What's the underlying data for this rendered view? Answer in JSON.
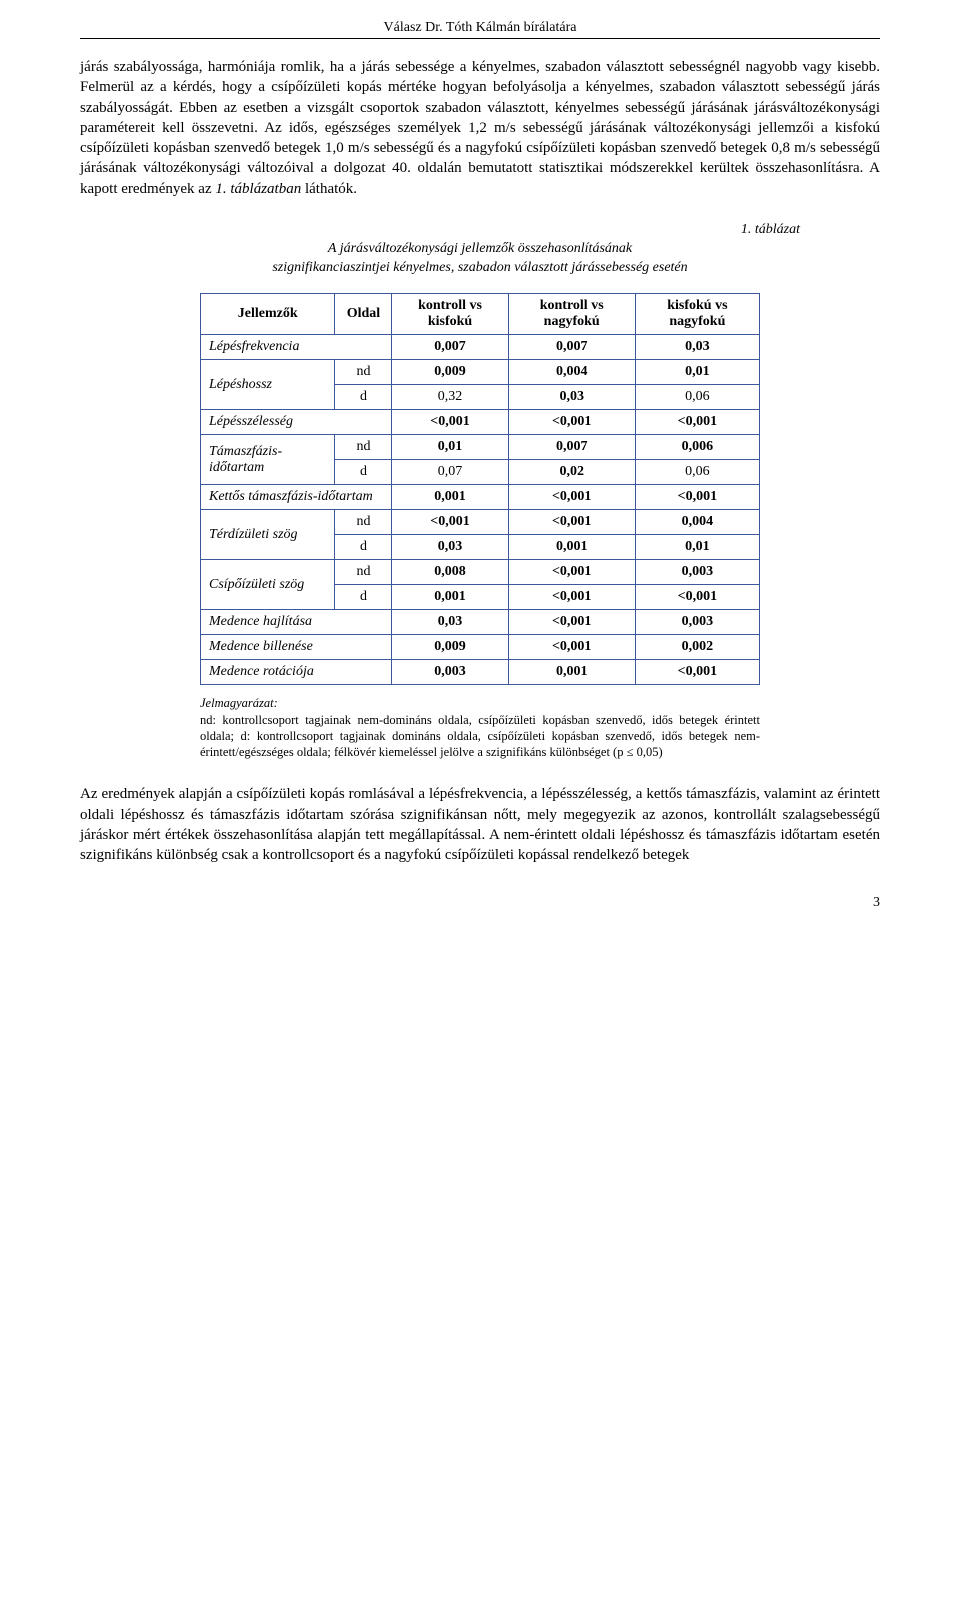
{
  "header": {
    "title": "Válasz Dr. Tóth Kálmán bírálatára"
  },
  "para1": "járás szabályossága, harmóniája romlik, ha a járás sebessége a kényelmes, szabadon választott sebességnél nagyobb vagy kisebb. Felmerül az a kérdés, hogy a csípőízületi kopás mértéke hogyan befolyásolja a kényelmes, szabadon választott sebességű járás szabályosságát. Ebben az esetben a vizsgált csoportok szabadon választott, kényelmes sebességű járásának járásváltozékonysági paramétereit kell összevetni. Az idős, egészséges személyek 1,2 m/s sebességű járásának változékonysági jellemzői a kisfokú csípőízületi kopásban szenvedő betegek 1,0 m/s sebességű és a nagyfokú csípőízületi kopásban szenvedő betegek 0,8 m/s sebességű járásának változékonysági változóival a dolgozat 40. oldalán bemutatott statisztikai módszerekkel kerültek összehasonlításra. A kapott eredmények az ",
  "para1_em": "1. táblázatban",
  "para1_end": " láthatók.",
  "caption": {
    "num": "1. táblázat",
    "line1": "A járásváltozékonysági jellemzők összehasonlításának",
    "line2": "szignifikanciaszintjei kényelmes, szabadon választott járássebesség esetén"
  },
  "table": {
    "headers": {
      "h1": "Jellemzők",
      "h2": "Oldal",
      "h3": "kontroll vs kisfokú",
      "h4": "kontroll vs nagyfokú",
      "h5": "kisfokú vs nagyfokú"
    },
    "rows": [
      {
        "label": "Lépésfrekvencia",
        "colspan": 2,
        "v": [
          "0,007",
          "0,007",
          "0,03"
        ],
        "bold": [
          true,
          true,
          true
        ]
      },
      {
        "label": "Lépéshossz",
        "side": "nd",
        "rowspan": 2,
        "v": [
          "0,009",
          "0,004",
          "0,01"
        ],
        "bold": [
          true,
          true,
          true
        ]
      },
      {
        "side": "d",
        "v": [
          "0,32",
          "0,03",
          "0,06"
        ],
        "bold": [
          false,
          true,
          false
        ]
      },
      {
        "label": "Lépésszélesség",
        "colspan": 2,
        "v": [
          "<0,001",
          "<0,001",
          "<0,001"
        ],
        "bold": [
          true,
          true,
          true
        ]
      },
      {
        "label": "Támaszfázis-időtartam",
        "side": "nd",
        "rowspan": 2,
        "v": [
          "0,01",
          "0,007",
          "0,006"
        ],
        "bold": [
          true,
          true,
          true
        ]
      },
      {
        "side": "d",
        "v": [
          "0,07",
          "0,02",
          "0,06"
        ],
        "bold": [
          false,
          true,
          false
        ]
      },
      {
        "label": "Kettős támaszfázis-időtartam",
        "colspan": 2,
        "v": [
          "0,001",
          "<0,001",
          "<0,001"
        ],
        "bold": [
          true,
          true,
          true
        ]
      },
      {
        "label": "Térdízületi szög",
        "side": "nd",
        "rowspan": 2,
        "v": [
          "<0,001",
          "<0,001",
          "0,004"
        ],
        "bold": [
          true,
          true,
          true
        ]
      },
      {
        "side": "d",
        "v": [
          "0,03",
          "0,001",
          "0,01"
        ],
        "bold": [
          true,
          true,
          true
        ]
      },
      {
        "label": "Csípőízületi szög",
        "side": "nd",
        "rowspan": 2,
        "v": [
          "0,008",
          "<0,001",
          "0,003"
        ],
        "bold": [
          true,
          true,
          true
        ]
      },
      {
        "side": "d",
        "v": [
          "0,001",
          "<0,001",
          "<0,001"
        ],
        "bold": [
          true,
          true,
          true
        ]
      },
      {
        "label": "Medence hajlítása",
        "colspan": 2,
        "v": [
          "0,03",
          "<0,001",
          "0,003"
        ],
        "bold": [
          true,
          true,
          true
        ]
      },
      {
        "label": "Medence billenése",
        "colspan": 2,
        "v": [
          "0,009",
          "<0,001",
          "0,002"
        ],
        "bold": [
          true,
          true,
          true
        ]
      },
      {
        "label": "Medence rotációja",
        "colspan": 2,
        "v": [
          "0,003",
          "0,001",
          "<0,001"
        ],
        "bold": [
          true,
          true,
          true
        ]
      }
    ]
  },
  "legend": {
    "title": "Jelmagyarázat:",
    "text": "nd: kontrollcsoport tagjainak nem-domináns oldala, csípőízületi kopásban szenvedő, idős betegek érintett oldala; d: kontrollcsoport tagjainak domináns oldala, csípőízületi kopásban szenvedő, idős betegek nem-érintett/egészséges oldala; félkövér kiemeléssel jelölve a szignifikáns különbséget (p ≤ 0,05)"
  },
  "para2": "Az eredmények alapján a csípőízületi kopás romlásával a lépésfrekvencia, a lépésszélesség, a kettős támaszfázis, valamint az érintett oldali lépéshossz és támaszfázis időtartam szórása szignifikánsan nőtt, mely megegyezik az azonos, kontrollált szalagsebességű járáskor mért értékek összehasonlítása alapján tett megállapítással. A nem-érintett oldali lépéshossz és támaszfázis időtartam esetén szignifikáns különbség csak a kontrollcsoport és a nagyfokú csípőízületi kopással rendelkező betegek",
  "pagenum": "3"
}
